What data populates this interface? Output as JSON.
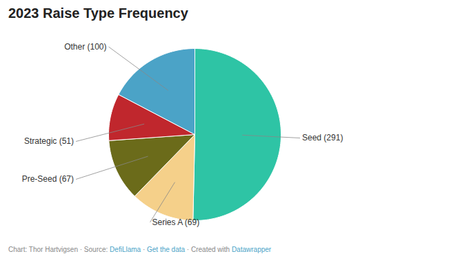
{
  "chart_data": {
    "type": "pie",
    "title": "2023 Raise Type Frequency",
    "categories": [
      "Seed (291)",
      "Series A (69)",
      "Pre-Seed (67)",
      "Strategic (51)",
      "Other (100)"
    ],
    "values": [
      291,
      69,
      67,
      51,
      100
    ],
    "colors": [
      "#2ec4a5",
      "#f5d08a",
      "#6b6b1a",
      "#c0272d",
      "#4ba3c7"
    ],
    "caption": [
      {
        "text": "Chart: Thor Hartvigsen · Source: ",
        "color": "#888888"
      },
      {
        "text": "DefiLlama",
        "color": "#4ba3c7"
      },
      {
        "text": " · ",
        "color": "#888888"
      },
      {
        "text": "Get the data",
        "color": "#4ba3c7"
      },
      {
        "text": " · Created with ",
        "color": "#888888"
      },
      {
        "text": "Datawrapper",
        "color": "#4ba3c7"
      }
    ]
  }
}
